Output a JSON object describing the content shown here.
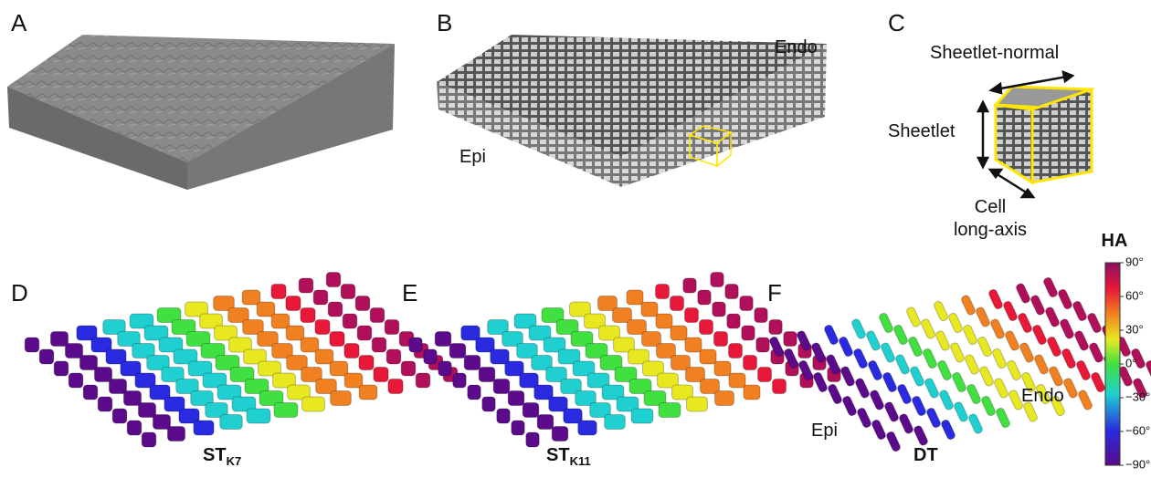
{
  "panels": {
    "A": {
      "letter": "A"
    },
    "B": {
      "letter": "B",
      "labels": [
        "Endo",
        "Epi"
      ]
    },
    "C": {
      "letter": "C",
      "labels": [
        "Sheetlet-normal",
        "Sheetlet",
        "Cell",
        "long-axis"
      ]
    },
    "D": {
      "letter": "D",
      "caption": "ST",
      "caption_sub": "K7"
    },
    "E": {
      "letter": "E",
      "caption": "ST",
      "caption_sub": "K11"
    },
    "F": {
      "letter": "F",
      "caption": "DT",
      "labels": [
        "Epi",
        "Endo"
      ]
    }
  },
  "colorbar": {
    "title": "HA",
    "range": [
      -90,
      90
    ],
    "ticks": [
      {
        "value": 90,
        "label": "90°"
      },
      {
        "value": 60,
        "label": "60°"
      },
      {
        "value": 30,
        "label": "30°"
      },
      {
        "value": 0,
        "label": "0°"
      },
      {
        "value": -30,
        "label": "−30°"
      },
      {
        "value": -60,
        "label": "−60°"
      },
      {
        "value": -90,
        "label": "−90°"
      }
    ]
  }
}
